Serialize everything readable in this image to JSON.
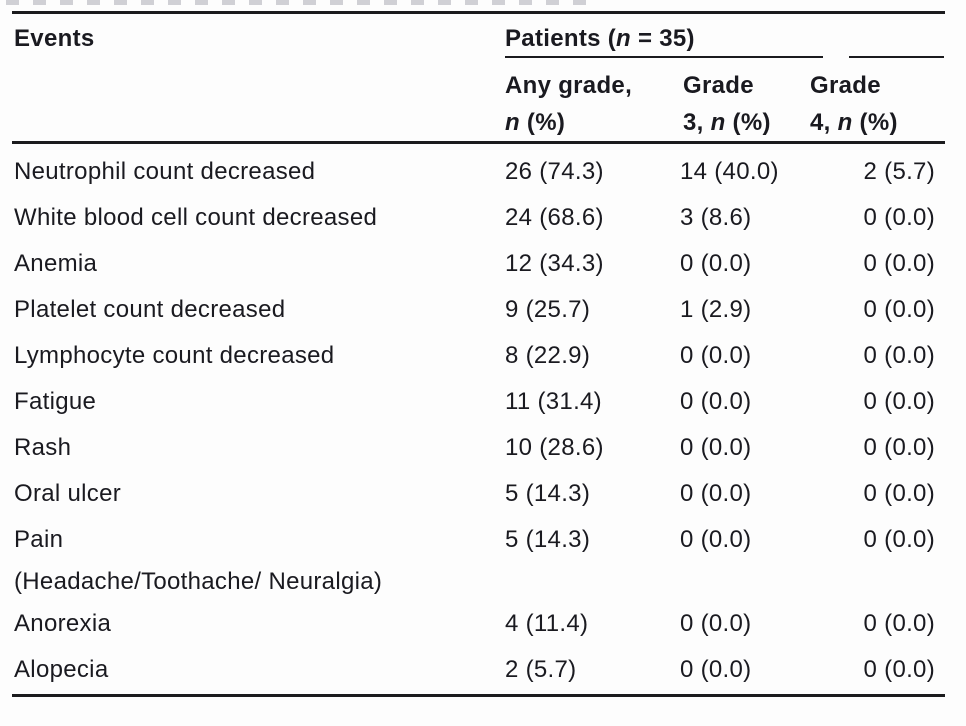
{
  "page": {
    "background": "#fdfdfd",
    "text_color": "#1a1a20",
    "rule_color": "#1b1b1e",
    "cropped_caption_mark_color": "#d0d0d5"
  },
  "table": {
    "events_header": "Events",
    "group_header": {
      "prefix": "Patients (",
      "n": "n",
      "suffix": " = 35)"
    },
    "columns": {
      "any_grade": {
        "line1": "Any grade,",
        "line2_prefix": "",
        "n": "n",
        "line2_suffix": " (%)"
      },
      "grade3": {
        "line1": "Grade",
        "line2_prefix": "3, ",
        "n": "n",
        "line2_suffix": " (%)"
      },
      "grade4": {
        "line1": "Grade",
        "line2_prefix": "4, ",
        "n": "n",
        "line2_suffix": " (%)"
      }
    },
    "rows": [
      {
        "event": "Neutrophil count decreased",
        "any_grade": "26 (74.3)",
        "grade3": "14 (40.0)",
        "grade4": "2 (5.7)"
      },
      {
        "event": "White blood cell count decreased",
        "any_grade": "24 (68.6)",
        "grade3": "3 (8.6)",
        "grade4": "0 (0.0)"
      },
      {
        "event": "Anemia",
        "any_grade": "12 (34.3)",
        "grade3": "0 (0.0)",
        "grade4": "0 (0.0)"
      },
      {
        "event": "Platelet count decreased",
        "any_grade": "9 (25.7)",
        "grade3": "1 (2.9)",
        "grade4": "0 (0.0)"
      },
      {
        "event": "Lymphocyte count decreased",
        "any_grade": "8 (22.9)",
        "grade3": "0 (0.0)",
        "grade4": "0 (0.0)"
      },
      {
        "event": "Fatigue",
        "any_grade": "11 (31.4)",
        "grade3": "0 (0.0)",
        "grade4": "0 (0.0)"
      },
      {
        "event": "Rash",
        "any_grade": "10 (28.6)",
        "grade3": "0 (0.0)",
        "grade4": "0 (0.0)"
      },
      {
        "event": "Oral ulcer",
        "any_grade": "5 (14.3)",
        "grade3": "0 (0.0)",
        "grade4": "0 (0.0)"
      },
      {
        "event": "Pain",
        "event_line2": "(Headache/Toothache/ Neuralgia)",
        "any_grade": "5 (14.3)",
        "grade3": "0 (0.0)",
        "grade4": "0 (0.0)"
      },
      {
        "event": "Anorexia",
        "any_grade": "4 (11.4)",
        "grade3": "0 (0.0)",
        "grade4": "0 (0.0)"
      },
      {
        "event": "Alopecia",
        "any_grade": "2 (5.7)",
        "grade3": "0 (0.0)",
        "grade4": "0 (0.0)"
      }
    ]
  }
}
